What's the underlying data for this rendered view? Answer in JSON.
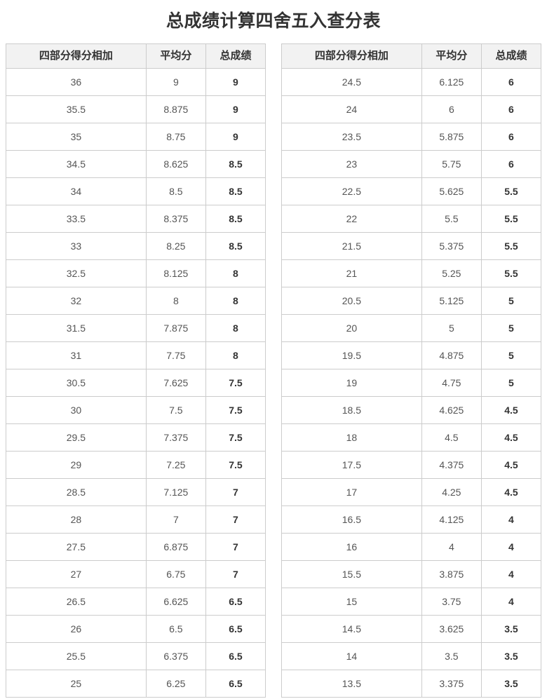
{
  "page": {
    "title": "总成绩计算四舍五入查分表"
  },
  "colors": {
    "header_bg": "#f2f2f2",
    "border": "#cccccc",
    "text_muted": "#555555",
    "text_strong": "#333333"
  },
  "tables": [
    {
      "headers": [
        "四部分得分相加",
        "平均分",
        "总成绩"
      ],
      "rows": [
        [
          "36",
          "9",
          "9"
        ],
        [
          "35.5",
          "8.875",
          "9"
        ],
        [
          "35",
          "8.75",
          "9"
        ],
        [
          "34.5",
          "8.625",
          "8.5"
        ],
        [
          "34",
          "8.5",
          "8.5"
        ],
        [
          "33.5",
          "8.375",
          "8.5"
        ],
        [
          "33",
          "8.25",
          "8.5"
        ],
        [
          "32.5",
          "8.125",
          "8"
        ],
        [
          "32",
          "8",
          "8"
        ],
        [
          "31.5",
          "7.875",
          "8"
        ],
        [
          "31",
          "7.75",
          "8"
        ],
        [
          "30.5",
          "7.625",
          "7.5"
        ],
        [
          "30",
          "7.5",
          "7.5"
        ],
        [
          "29.5",
          "7.375",
          "7.5"
        ],
        [
          "29",
          "7.25",
          "7.5"
        ],
        [
          "28.5",
          "7.125",
          "7"
        ],
        [
          "28",
          "7",
          "7"
        ],
        [
          "27.5",
          "6.875",
          "7"
        ],
        [
          "27",
          "6.75",
          "7"
        ],
        [
          "26.5",
          "6.625",
          "6.5"
        ],
        [
          "26",
          "6.5",
          "6.5"
        ],
        [
          "25.5",
          "6.375",
          "6.5"
        ],
        [
          "25",
          "6.25",
          "6.5"
        ]
      ]
    },
    {
      "headers": [
        "四部分得分相加",
        "平均分",
        "总成绩"
      ],
      "rows": [
        [
          "24.5",
          "6.125",
          "6"
        ],
        [
          "24",
          "6",
          "6"
        ],
        [
          "23.5",
          "5.875",
          "6"
        ],
        [
          "23",
          "5.75",
          "6"
        ],
        [
          "22.5",
          "5.625",
          "5.5"
        ],
        [
          "22",
          "5.5",
          "5.5"
        ],
        [
          "21.5",
          "5.375",
          "5.5"
        ],
        [
          "21",
          "5.25",
          "5.5"
        ],
        [
          "20.5",
          "5.125",
          "5"
        ],
        [
          "20",
          "5",
          "5"
        ],
        [
          "19.5",
          "4.875",
          "5"
        ],
        [
          "19",
          "4.75",
          "5"
        ],
        [
          "18.5",
          "4.625",
          "4.5"
        ],
        [
          "18",
          "4.5",
          "4.5"
        ],
        [
          "17.5",
          "4.375",
          "4.5"
        ],
        [
          "17",
          "4.25",
          "4.5"
        ],
        [
          "16.5",
          "4.125",
          "4"
        ],
        [
          "16",
          "4",
          "4"
        ],
        [
          "15.5",
          "3.875",
          "4"
        ],
        [
          "15",
          "3.75",
          "4"
        ],
        [
          "14.5",
          "3.625",
          "3.5"
        ],
        [
          "14",
          "3.5",
          "3.5"
        ],
        [
          "13.5",
          "3.375",
          "3.5"
        ]
      ]
    }
  ]
}
